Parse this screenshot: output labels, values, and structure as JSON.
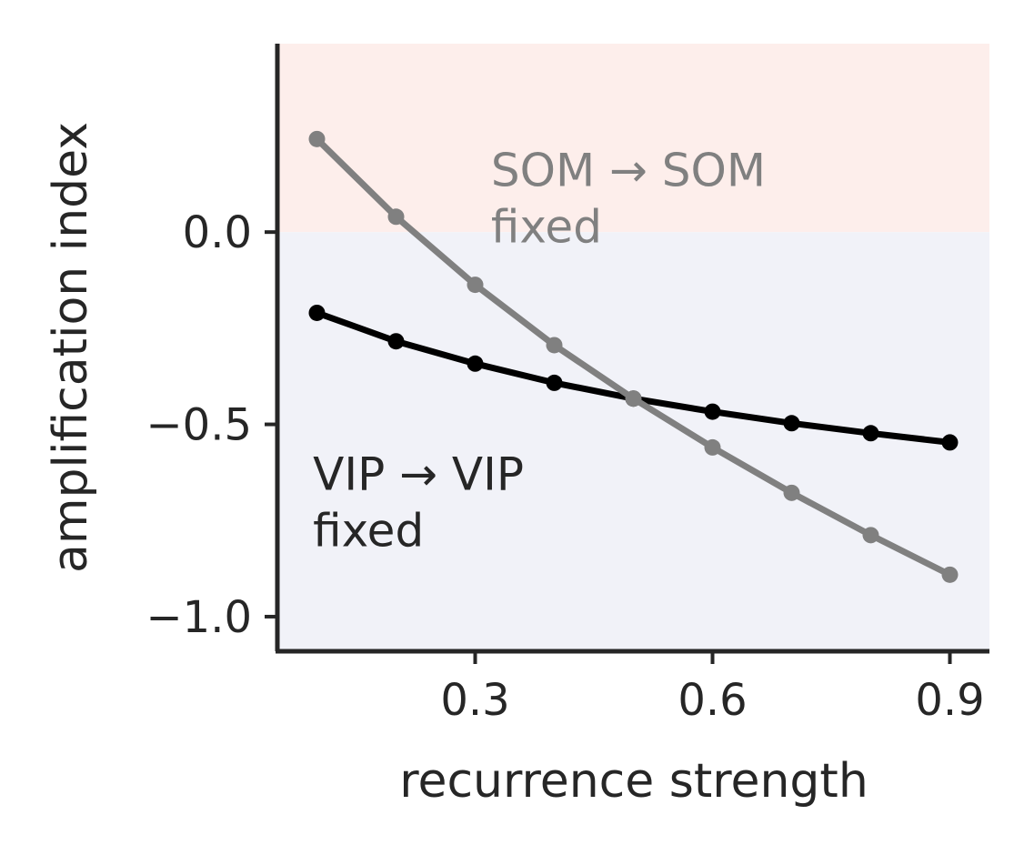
{
  "chart_data": {
    "type": "line",
    "xlabel": "recurrence strength",
    "ylabel": "amplification index",
    "xlim": [
      0.05,
      0.95
    ],
    "ylim": [
      -1.09,
      0.49
    ],
    "xticks": [
      0.3,
      0.6,
      0.9
    ],
    "xtick_labels": [
      "0.3",
      "0.6",
      "0.9"
    ],
    "yticks": [
      0.0,
      -0.5,
      -1.0
    ],
    "ytick_labels": [
      "0.0",
      "−0.5",
      "−1.0"
    ],
    "grid": false,
    "background_regions": [
      {
        "y_from": 0.0,
        "y_to": 0.49,
        "color": "#fdeeeb"
      },
      {
        "y_from": -1.09,
        "y_to": 0.0,
        "color": "#f1f2f8"
      }
    ],
    "x": [
      0.1,
      0.2,
      0.3,
      0.4,
      0.5,
      0.6,
      0.7,
      0.8,
      0.9
    ],
    "series": [
      {
        "color": "#000000",
        "values": [
          -0.21,
          -0.284,
          -0.342,
          -0.392,
          -0.433,
          -0.467,
          -0.497,
          -0.523,
          -0.547
        ]
      },
      {
        "color": "#808080",
        "values": [
          0.242,
          0.04,
          -0.137,
          -0.294,
          -0.433,
          -0.56,
          -0.678,
          -0.788,
          -0.891
        ]
      }
    ],
    "annotations": [
      {
        "line1": "SOM → SOM",
        "line2": "fixed",
        "color": "#808080",
        "x": 0.32,
        "y": 0.12
      },
      {
        "line1": "VIP → VIP",
        "line2": "fixed",
        "color": "#262626",
        "x": 0.095,
        "y": -0.67
      }
    ]
  }
}
